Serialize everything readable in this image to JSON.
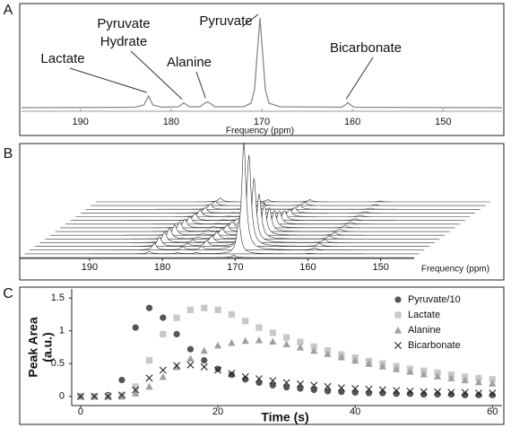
{
  "chart_data": [
    {
      "type": "line",
      "label": "A",
      "xlabel": "Frequency (ppm)",
      "x": [
        196.5,
        184,
        183,
        182.7,
        182.5,
        182.3,
        182,
        181,
        179.2,
        178.8,
        178.6,
        178.4,
        178,
        176.8,
        176.3,
        176,
        175.7,
        175.2,
        172,
        171.2,
        170.8,
        170.5,
        170.2,
        169.9,
        169.6,
        169.2,
        168,
        161.2,
        160.8,
        160.5,
        160.2,
        159.8,
        143.5
      ],
      "values": [
        0,
        0.005,
        0.03,
        0.09,
        0.13,
        0.09,
        0.03,
        0.005,
        0.01,
        0.04,
        0.055,
        0.04,
        0.01,
        0.01,
        0.05,
        0.065,
        0.05,
        0.01,
        0.01,
        0.05,
        0.2,
        0.6,
        1.0,
        0.6,
        0.2,
        0.05,
        0.01,
        0.005,
        0.03,
        0.055,
        0.03,
        0.005,
        0
      ],
      "color": "#888888",
      "xlim": [
        196.5,
        143.5
      ],
      "ylim": [
        0,
        1
      ],
      "xticks": [
        190,
        180,
        170,
        160,
        150
      ],
      "annotations": [
        {
          "lines": [
            "Lactate"
          ],
          "x": 182.5
        },
        {
          "lines": [
            "Pyruvate",
            "Hydrate"
          ],
          "x": 178.6
        },
        {
          "lines": [
            "Alanine"
          ],
          "x": 176
        },
        {
          "lines": [
            "Pyruvate"
          ],
          "x": 170.2
        },
        {
          "lines": [
            "Bicarbonate"
          ],
          "x": 160.5
        }
      ]
    },
    {
      "type": "waterfall",
      "label": "B",
      "xlabel": "Frequency (ppm)",
      "color": "#333333",
      "xlim": [
        199.6,
        145.4
      ],
      "xticks": [
        190,
        180,
        170,
        160,
        150
      ],
      "peaks": [
        182.5,
        178.6,
        176,
        170.2,
        160.5
      ],
      "traces": [
        [
          0,
          0,
          0,
          0.02,
          0
        ],
        [
          0.02,
          0.01,
          0.01,
          0.3,
          0.005
        ],
        [
          0.06,
          0.03,
          0.03,
          1.0,
          0.02
        ],
        [
          0.09,
          0.025,
          0.05,
          0.85,
          0.03
        ],
        [
          0.1,
          0.02,
          0.06,
          0.6,
          0.03
        ],
        [
          0.1,
          0.015,
          0.065,
          0.42,
          0.028
        ],
        [
          0.095,
          0.012,
          0.065,
          0.3,
          0.025
        ],
        [
          0.09,
          0.01,
          0.06,
          0.22,
          0.022
        ],
        [
          0.08,
          0.008,
          0.055,
          0.16,
          0.02
        ],
        [
          0.07,
          0.006,
          0.05,
          0.12,
          0.018
        ],
        [
          0.065,
          0.005,
          0.045,
          0.09,
          0.016
        ],
        [
          0.06,
          0.004,
          0.04,
          0.07,
          0.014
        ],
        [
          0.05,
          0.003,
          0.035,
          0.05,
          0.012
        ],
        [
          0.045,
          0.003,
          0.03,
          0.04,
          0.01
        ],
        [
          0.04,
          0.002,
          0.025,
          0.03,
          0.009
        ],
        [
          0.035,
          0.002,
          0.02,
          0.02,
          0.008
        ]
      ]
    },
    {
      "type": "scatter",
      "label": "C",
      "xlabel": "Time (s)",
      "ylabel": [
        "Peak Area",
        "(a.u.)"
      ],
      "xlim": [
        -1.3,
        61.4
      ],
      "ylim": [
        -0.14,
        1.64
      ],
      "xticks": [
        0,
        20,
        40,
        60
      ],
      "yticks": [
        0,
        0.5,
        1,
        1.5
      ],
      "legend": "upper right",
      "x": [
        0,
        2,
        4,
        6,
        8,
        10,
        12,
        14,
        16,
        18,
        20,
        22,
        24,
        26,
        28,
        30,
        32,
        34,
        36,
        38,
        40,
        42,
        44,
        46,
        48,
        50,
        52,
        54,
        56,
        58,
        60
      ],
      "series": [
        {
          "name": "Pyruvate/10",
          "color": "#555555",
          "marker": "circle",
          "values": [
            0,
            0,
            0.02,
            0.25,
            1.05,
            1.35,
            1.2,
            0.95,
            0.72,
            0.55,
            0.42,
            0.33,
            0.26,
            0.21,
            0.17,
            0.14,
            0.12,
            0.1,
            0.08,
            0.07,
            0.06,
            0.05,
            0.05,
            0.04,
            0.04,
            0.03,
            0.03,
            0.03,
            0.02,
            0.02,
            0.02
          ]
        },
        {
          "name": "Lactate",
          "color": "#c8c8c8",
          "marker": "square",
          "values": [
            0,
            0,
            0,
            0.02,
            0.15,
            0.55,
            0.95,
            1.2,
            1.32,
            1.35,
            1.32,
            1.25,
            1.15,
            1.05,
            0.97,
            0.9,
            0.83,
            0.76,
            0.7,
            0.64,
            0.59,
            0.54,
            0.5,
            0.46,
            0.42,
            0.39,
            0.36,
            0.33,
            0.3,
            0.28,
            0.26
          ]
        },
        {
          "name": "Alanine",
          "color": "#a0a0a0",
          "marker": "triangle",
          "values": [
            0,
            0,
            0,
            0,
            0.05,
            0.15,
            0.3,
            0.45,
            0.58,
            0.7,
            0.78,
            0.82,
            0.85,
            0.86,
            0.84,
            0.8,
            0.75,
            0.7,
            0.65,
            0.6,
            0.55,
            0.5,
            0.46,
            0.42,
            0.38,
            0.34,
            0.31,
            0.28,
            0.25,
            0.22,
            0.2
          ]
        },
        {
          "name": "Bicarbonate",
          "color": "#222222",
          "marker": "x",
          "values": [
            0,
            0,
            0,
            0.02,
            0.1,
            0.28,
            0.4,
            0.47,
            0.48,
            0.45,
            0.4,
            0.35,
            0.3,
            0.27,
            0.24,
            0.21,
            0.19,
            0.17,
            0.15,
            0.13,
            0.12,
            0.11,
            0.1,
            0.09,
            0.08,
            0.07,
            0.07,
            0.06,
            0.06,
            0.05,
            0.05
          ]
        }
      ]
    }
  ]
}
